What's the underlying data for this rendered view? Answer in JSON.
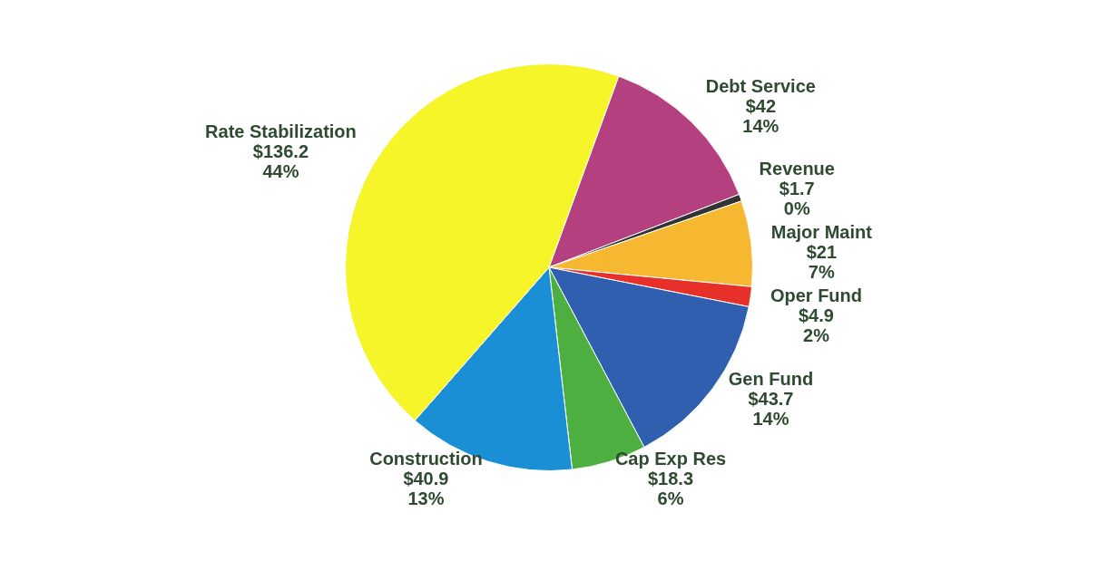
{
  "chart_data": {
    "type": "pie",
    "categories": [
      "Debt Service",
      "Revenue",
      "Major Maint",
      "Oper Fund",
      "Gen Fund",
      "Cap Exp Res",
      "Construction",
      "Rate Stabilization"
    ],
    "values": [
      42,
      1.7,
      21,
      4.9,
      43.7,
      18.3,
      40.9,
      136.2
    ],
    "value_labels": [
      "$42\n14%",
      "$1.7\n0%",
      "$21\n7%",
      "$4.9\n2%",
      "$43.7\n14%",
      "$18.3\n6%",
      "$40.9\n13%",
      "$136.2\n44%"
    ],
    "colors": [
      "#b5407f",
      "#333333",
      "#f6b830",
      "#e8302a",
      "#2f5fae",
      "#4caf3f",
      "#1a8fd6",
      "#f5f52a"
    ],
    "legend": false
  }
}
